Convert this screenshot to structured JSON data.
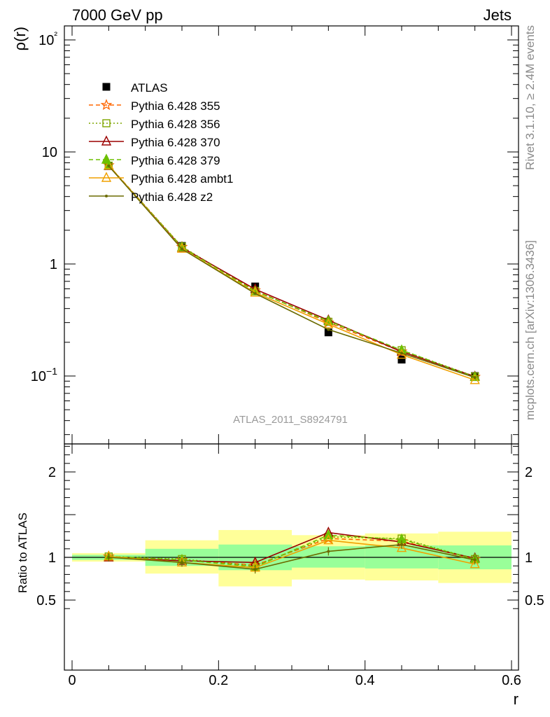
{
  "header": {
    "left": "7000 GeV pp",
    "right": "Jets"
  },
  "side_labels": {
    "rivet": "Rivet 3.1.10, ≥ 2.4M events",
    "mcplots": "mcplots.cern.ch [arXiv:1306.3436]"
  },
  "analysis_id": "ATLAS_2011_S8924791",
  "chart_data": [
    {
      "panel": "main",
      "type": "line",
      "ylabel": "ρ(r)",
      "xlabel": "r",
      "xlim": [
        -0.01,
        0.6
      ],
      "ylim": [
        0.025,
        130
      ],
      "log_y": true,
      "y_tick_labels": [
        "10−1",
        "1",
        "10",
        "10²"
      ],
      "x_tick_labels": [
        "0",
        "0.2",
        "0.4",
        "0.6"
      ],
      "legend_placement": "top-left",
      "x": [
        0.05,
        0.15,
        0.25,
        0.35,
        0.45,
        0.55
      ],
      "series": [
        {
          "name": "ATLAS",
          "color": "#000000",
          "marker": "square-filled",
          "values": [
            7.5,
            1.45,
            0.63,
            0.245,
            0.14,
            0.1
          ]
        },
        {
          "name": "Pythia 6.428 355",
          "color": "#ff6600",
          "marker": "star",
          "dash": "6,4",
          "values": [
            7.6,
            1.42,
            0.58,
            0.3,
            0.165,
            0.098
          ]
        },
        {
          "name": "Pythia 6.428 356",
          "color": "#7fa500",
          "marker": "square-open",
          "dash": "2,3",
          "values": [
            7.55,
            1.43,
            0.575,
            0.305,
            0.17,
            0.099
          ]
        },
        {
          "name": "Pythia 6.428 370",
          "color": "#9b0000",
          "marker": "triangle-open",
          "values": [
            7.5,
            1.4,
            0.595,
            0.315,
            0.165,
            0.099
          ]
        },
        {
          "name": "Pythia 6.428 379",
          "color": "#6dc000",
          "marker": "triangle-filled",
          "dash": "6,4",
          "values": [
            7.55,
            1.41,
            0.57,
            0.31,
            0.17,
            0.098
          ]
        },
        {
          "name": "Pythia 6.428 ambt1",
          "color": "#f0a000",
          "marker": "triangle-open",
          "values": [
            7.6,
            1.37,
            0.555,
            0.29,
            0.155,
            0.092
          ]
        },
        {
          "name": "Pythia 6.428 z2",
          "color": "#6b6b00",
          "marker": "dot",
          "values": [
            7.5,
            1.36,
            0.545,
            0.26,
            0.16,
            0.097
          ]
        }
      ]
    },
    {
      "panel": "ratio",
      "type": "line",
      "ylabel": "Ratio to ATLAS",
      "xlabel": "r",
      "xlim": [
        -0.01,
        0.6
      ],
      "ylim": [
        0.4,
        2.3
      ],
      "y_tick_labels": [
        "0.5",
        "1",
        "2"
      ],
      "x_tick_labels": [
        "0",
        "0.2",
        "0.4",
        "0.6"
      ],
      "bands": [
        {
          "x_low": 0.0,
          "x_high": 0.1,
          "stat_low": 0.97,
          "stat_high": 1.03,
          "tot_low": 0.95,
          "tot_high": 1.05
        },
        {
          "x_low": 0.1,
          "x_high": 0.2,
          "stat_low": 0.9,
          "stat_high": 1.1,
          "tot_low": 0.81,
          "tot_high": 1.2
        },
        {
          "x_low": 0.2,
          "x_high": 0.3,
          "stat_low": 0.85,
          "stat_high": 1.15,
          "tot_low": 0.66,
          "tot_high": 1.32
        },
        {
          "x_low": 0.3,
          "x_high": 0.4,
          "stat_low": 0.88,
          "stat_high": 1.13,
          "tot_low": 0.74,
          "tot_high": 1.26
        },
        {
          "x_low": 0.4,
          "x_high": 0.5,
          "stat_low": 0.87,
          "stat_high": 1.14,
          "tot_low": 0.73,
          "tot_high": 1.28
        },
        {
          "x_low": 0.5,
          "x_high": 0.6,
          "stat_low": 0.86,
          "stat_high": 1.14,
          "tot_low": 0.7,
          "tot_high": 1.3
        }
      ],
      "x": [
        0.05,
        0.15,
        0.25,
        0.35,
        0.45,
        0.55
      ],
      "series": [
        {
          "name": "Pythia 6.428 355",
          "color": "#ff6600",
          "marker": "star",
          "dash": "6,4",
          "values": [
            1.01,
            0.97,
            0.91,
            1.22,
            1.19,
            0.98
          ]
        },
        {
          "name": "Pythia 6.428 356",
          "color": "#7fa500",
          "marker": "square-open",
          "dash": "2,3",
          "values": [
            1.01,
            0.98,
            0.9,
            1.24,
            1.22,
            0.98
          ]
        },
        {
          "name": "Pythia 6.428 370",
          "color": "#9b0000",
          "marker": "triangle-open",
          "values": [
            1.0,
            0.96,
            0.94,
            1.29,
            1.18,
            0.99
          ]
        },
        {
          "name": "Pythia 6.428 379",
          "color": "#6dc000",
          "marker": "triangle-filled",
          "dash": "6,4",
          "values": [
            1.01,
            0.97,
            0.89,
            1.26,
            1.21,
            0.98
          ]
        },
        {
          "name": "Pythia 6.428 ambt1",
          "color": "#f0a000",
          "marker": "triangle-open",
          "values": [
            1.01,
            0.94,
            0.88,
            1.2,
            1.11,
            0.92
          ]
        },
        {
          "name": "Pythia 6.428 z2",
          "color": "#6b6b00",
          "marker": "dot",
          "values": [
            1.0,
            0.94,
            0.86,
            1.07,
            1.15,
            0.97
          ]
        }
      ]
    }
  ]
}
